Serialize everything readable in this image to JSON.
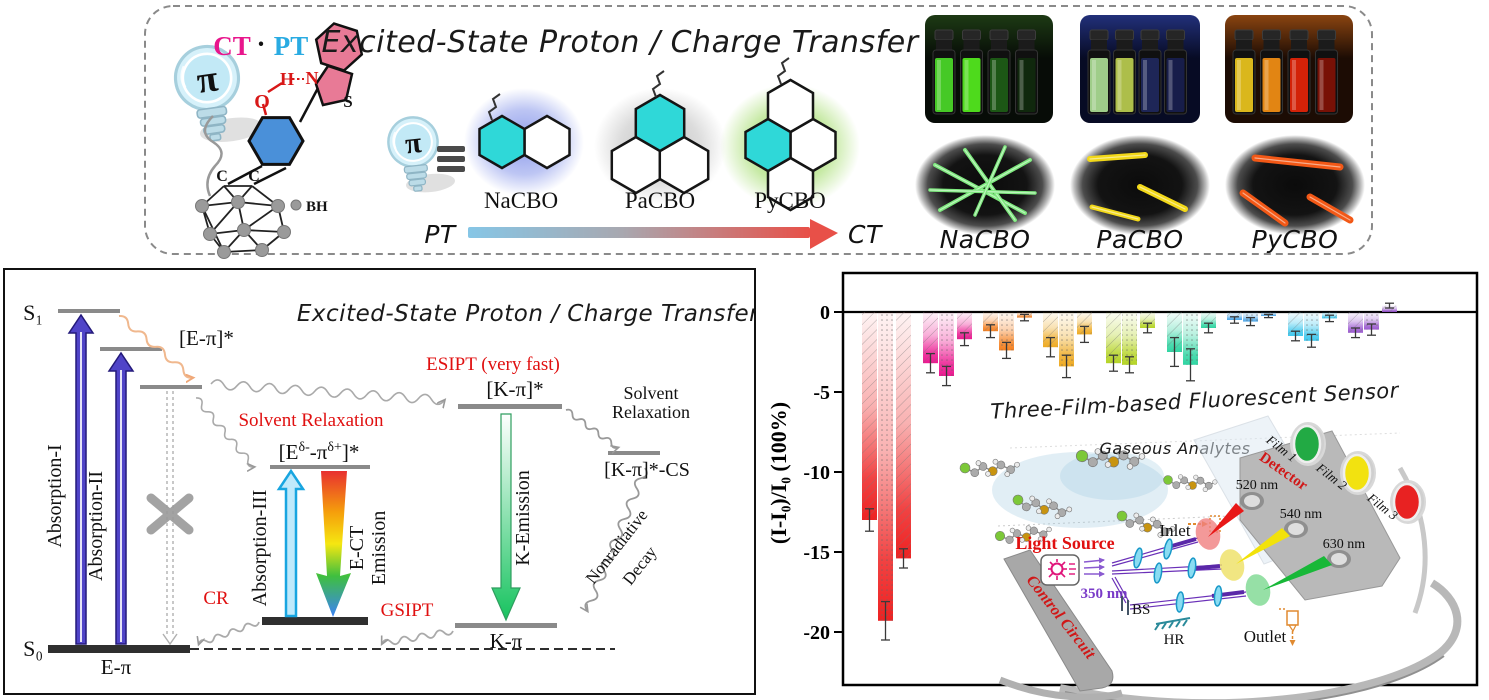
{
  "top_panel": {
    "title": "Excited-State Proton / Charge Transfer",
    "ct": "CT",
    "dot": "·",
    "pt": "PT",
    "pi": "π",
    "atoms": {
      "o": "O",
      "h": "H",
      "n": "N",
      "s": "S",
      "c1": "C",
      "c2": "C",
      "bh": "BH"
    },
    "compounds": [
      {
        "name": "NaCBO"
      },
      {
        "name": "PaCBO"
      },
      {
        "name": "PyCBO"
      }
    ],
    "photo_labels": [
      "NaCBO",
      "PaCBO",
      "PyCBO"
    ],
    "pt_label": "PT",
    "ct_label": "CT",
    "structure_colors": {
      "highlight": "#2fd8d8",
      "glows": [
        "#7b8ce8",
        "#b9b9b9",
        "#8ed44a"
      ],
      "pt_ct_gradient": [
        "#86c6e6",
        "#a8a8b0",
        "#e85048"
      ]
    },
    "cuvette_photos": [
      {
        "bg": "#070c07",
        "tint": "#1d3a14",
        "cuvettes": [
          "#4ad428",
          "#52e61e",
          "#1e5c16",
          "#112a0e"
        ]
      },
      {
        "bg": "#070b24",
        "tint": "#22307a",
        "cuvettes": [
          "#a8d890",
          "#b6c84e",
          "#20285c",
          "#181f4e"
        ]
      },
      {
        "bg": "#1c0c04",
        "tint": "#8a4410",
        "cuvettes": [
          "#e6c11e",
          "#ee8c14",
          "#de2408",
          "#7e1206"
        ]
      }
    ],
    "crystal_colors": [
      "#7de87d",
      "#f2d818",
      "#f25816"
    ]
  },
  "diagram": {
    "title": "Excited-State Proton / Charge Transfer",
    "levels": {
      "s1": "S₁",
      "s0": "S₀",
      "e_pi": "E-π",
      "e_pi_star": "[E-π]*",
      "ct_p1": "[E",
      "ct_s1": "δ-",
      "ct_p2": "-π",
      "ct_s2": "δ+",
      "ct_p3": "]*",
      "k_star": "[K-π]*",
      "k_cs": "[K-π]*-CS",
      "k_pi": "K-π"
    },
    "arrows": {
      "abs1": "Absorption-I",
      "abs2": "Absorption-II",
      "abs3": "Absorption-III",
      "ect1": "E-CT",
      "ect2": "Emission",
      "kem": "K-Emission"
    },
    "red_labels": {
      "esipt": "ESIPT (very fast)",
      "solvent_relax": "Solvent Relaxation",
      "cr": "CR",
      "gsipt": "GSIPT"
    },
    "black_labels": {
      "solv2a": "Solvent",
      "solv2b": "Relaxation",
      "nr1": "Nonradiative",
      "nr2": "Decay"
    }
  },
  "chart_data": {
    "type": "bar",
    "title": "Three-Film-based Fluorescent Sensor",
    "ylabel": "(I-I₀)/I₀ (100%)",
    "ylim": [
      -21,
      1.5
    ],
    "yticks": [
      0,
      -5,
      -10,
      -15,
      -20
    ],
    "ytick_labels": [
      "0",
      "-5",
      "-10",
      "-15",
      "-20"
    ],
    "grid": false,
    "legend_position": "none",
    "bar_labels": [
      "Film 1",
      "Film 2",
      "Film 3"
    ],
    "bar_patterns": [
      "hatch",
      "dots",
      "hatch"
    ],
    "groups": [
      {
        "color": "#ee2222",
        "values": [
          -13.0,
          -19.3,
          -15.4
        ],
        "errors": [
          0.7,
          1.2,
          0.6
        ]
      },
      {
        "color": "#ec1890",
        "values": [
          -3.2,
          -4.0,
          -1.7
        ],
        "errors": [
          0.6,
          0.6,
          0.4
        ]
      },
      {
        "color": "#f58020",
        "values": [
          -1.2,
          -2.4,
          -0.35
        ],
        "errors": [
          0.4,
          0.5,
          0.2
        ]
      },
      {
        "color": "#eeaa22",
        "values": [
          -2.2,
          -3.4,
          -1.4
        ],
        "errors": [
          0.6,
          0.7,
          0.5
        ]
      },
      {
        "color": "#b5d426",
        "values": [
          -3.2,
          -3.3,
          -1.0
        ],
        "errors": [
          0.5,
          0.5,
          0.3
        ]
      },
      {
        "color": "#2fd5a2",
        "values": [
          -2.5,
          -3.3,
          -1.0
        ],
        "errors": [
          0.9,
          1.0,
          0.3
        ]
      },
      {
        "color": "#4da6e8",
        "values": [
          -0.5,
          -0.6,
          -0.25
        ],
        "errors": [
          0.2,
          0.25,
          0.1
        ]
      },
      {
        "color": "#3fc8ee",
        "values": [
          -1.5,
          -1.8,
          -0.4
        ],
        "errors": [
          0.3,
          0.4,
          0.2
        ]
      },
      {
        "color": "#9b59d0",
        "values": [
          -1.3,
          -1.1,
          0.4
        ],
        "errors": [
          0.3,
          0.35,
          0.15
        ]
      }
    ]
  },
  "inset": {
    "gaseous": "Gaseous Analytes",
    "inlet": "Inlet",
    "outlet": "Outlet",
    "detector": "Detector",
    "ports": [
      "520 nm",
      "540 nm",
      "630 nm"
    ],
    "light_source": "Light Source",
    "wavelength": "350 nm",
    "bs": "BS",
    "hr": "HR",
    "control": "Control Circuit"
  }
}
